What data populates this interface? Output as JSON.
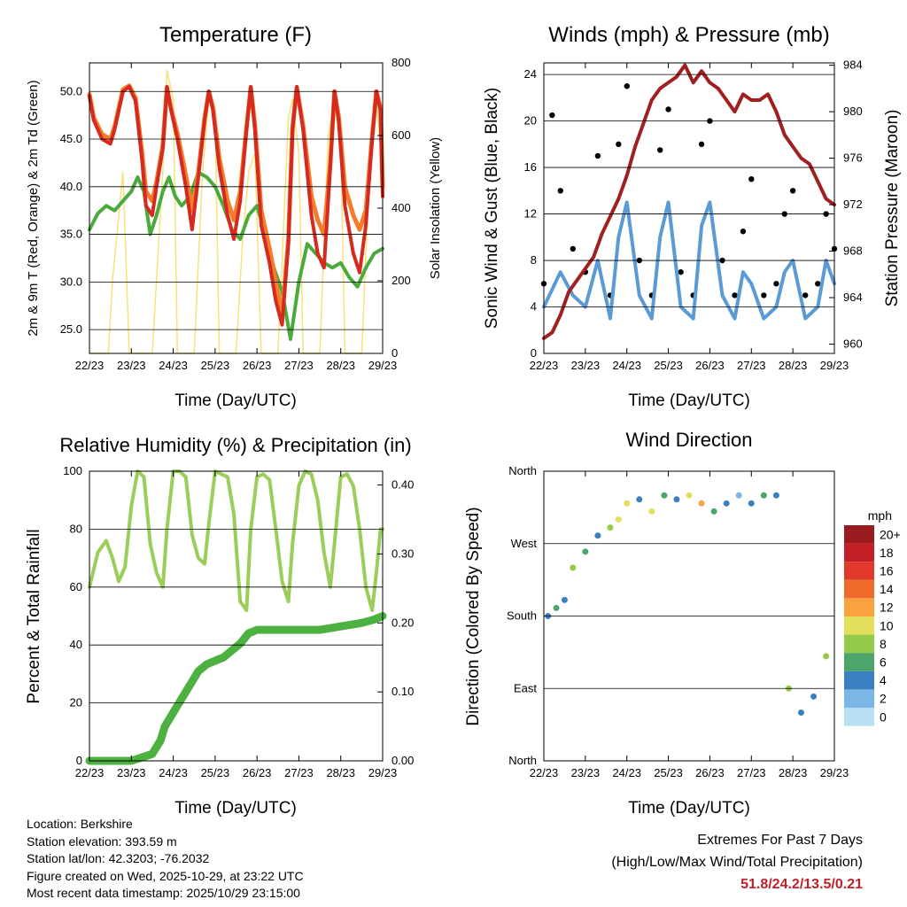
{
  "panels": {
    "temperature": {
      "title": "Temperature (F)",
      "ylabel_left": "2m & 9m T (Red, Orange) & 2m Td (Green)",
      "ylabel_right": "Solar Insolation (Yellow)",
      "xlabel": "Time (Day/UTC)"
    },
    "winds": {
      "title": "Winds (mph) & Pressure (mb)",
      "ylabel_left": "Sonic Wind & Gust (Blue, Black)",
      "ylabel_right": "Station Pressure (Maroon)",
      "xlabel": "Time (Day/UTC)"
    },
    "humidity": {
      "title": "Relative Humidity (%) & Precipitation (in)",
      "ylabel_left": "Percent & Total Rainfall",
      "xlabel": "Time (Day/UTC)"
    },
    "direction": {
      "title": "Wind Direction",
      "ylabel_left": "Direction (Colored By Speed)",
      "xlabel": "Time (Day/UTC)",
      "legend_title": "mph"
    }
  },
  "station": {
    "location": "Location: Berkshire",
    "elevation": "Station elevation: 393.59 m",
    "latlon": "Station lat/lon: 42.3203; -76.2032",
    "created": "Figure created on Wed, 2025-10-29, at 23:22 UTC",
    "recent": "Most recent data timestamp: 2025/10/29 23:15:00"
  },
  "extremes": {
    "line1": "Extremes For Past 7 Days",
    "line2": "(High/Low/Max Wind/Total Precipitation)",
    "values": "51.8/24.2/13.5/0.21"
  },
  "colors": {
    "temp2m": "#d42a20",
    "temp9m": "#f47c2a",
    "dewpoint": "#4aab3c",
    "solar": "#f7e27a",
    "wind": "#5b9bd5",
    "gust": "#000000",
    "pressure": "#a02020",
    "rh": "#9acd5a",
    "precip": "#4cb140"
  },
  "chart_data": [
    {
      "type": "line",
      "title": "Temperature (F)",
      "xlabel": "Time (Day/UTC)",
      "x_ticks": [
        "22/23",
        "23/23",
        "24/23",
        "25/23",
        "26/23",
        "27/23",
        "28/23",
        "29/23"
      ],
      "xlim": [
        0,
        7
      ],
      "ylabel": "2m & 9m T (Red, Orange) & 2m Td (Green)",
      "ylim": [
        22.5,
        53
      ],
      "y_ticks": [
        "25.0",
        "30.0",
        "35.0",
        "40.0",
        "45.0",
        "50.0"
      ],
      "y2label": "Solar Insolation (Yellow)",
      "y2lim": [
        0,
        800
      ],
      "y2_ticks": [
        "0",
        "200",
        "400",
        "600",
        "800"
      ],
      "series": [
        {
          "name": "2m T",
          "color": "#d42a20",
          "x": [
            0,
            0.1,
            0.3,
            0.5,
            0.6,
            0.8,
            0.95,
            1.1,
            1.25,
            1.35,
            1.5,
            1.6,
            1.75,
            1.85,
            1.95,
            2.1,
            2.3,
            2.45,
            2.6,
            2.75,
            2.85,
            2.95,
            3.1,
            3.3,
            3.45,
            3.6,
            3.75,
            3.85,
            3.95,
            4.1,
            4.3,
            4.45,
            4.6,
            4.75,
            4.85,
            4.95,
            5.1,
            5.3,
            5.45,
            5.6,
            5.75,
            5.85,
            5.95,
            6.1,
            6.3,
            6.45,
            6.6,
            6.75,
            6.85,
            6.95,
            7.0
          ],
          "y": [
            49.5,
            47,
            45,
            44.5,
            46,
            50,
            50.5,
            49,
            43,
            38,
            37,
            40,
            44,
            50.5,
            48,
            45,
            40,
            35.5,
            41,
            47,
            50,
            48,
            42,
            37,
            34.5,
            38.5,
            46,
            50.5,
            46,
            36,
            32,
            28,
            25.5,
            34,
            46,
            50.5,
            46,
            37,
            33,
            31.5,
            42,
            50,
            47,
            38,
            33,
            31,
            36,
            45,
            50,
            48,
            39
          ]
        },
        {
          "name": "9m T",
          "color": "#f47c2a",
          "x": [
            0,
            0.1,
            0.3,
            0.5,
            0.6,
            0.8,
            0.95,
            1.1,
            1.25,
            1.35,
            1.5,
            1.6,
            1.75,
            1.85,
            1.95,
            2.1,
            2.3,
            2.45,
            2.6,
            2.75,
            2.85,
            2.95,
            3.1,
            3.3,
            3.45,
            3.6,
            3.75,
            3.85,
            3.95,
            4.1,
            4.3,
            4.45,
            4.6,
            4.75,
            4.85,
            4.95,
            5.1,
            5.3,
            5.45,
            5.6,
            5.75,
            5.85,
            5.95,
            6.1,
            6.3,
            6.45,
            6.6,
            6.75,
            6.85,
            6.95,
            7.0
          ],
          "y": [
            49.7,
            47.3,
            45.5,
            45,
            46.3,
            50.2,
            50.6,
            49.3,
            43.8,
            39.5,
            38.5,
            40.5,
            44.3,
            50.4,
            48.2,
            45.6,
            41.2,
            37.5,
            41.5,
            47.2,
            50,
            48.3,
            43,
            38.5,
            36.5,
            39.5,
            46.2,
            50.4,
            46.5,
            37.5,
            33.5,
            30,
            26.5,
            34.5,
            46.2,
            50.4,
            46.4,
            39,
            36.5,
            35,
            42.5,
            50,
            47.4,
            40,
            37,
            35.5,
            37.5,
            45.3,
            50,
            48.3,
            40
          ]
        },
        {
          "name": "2m Td",
          "color": "#4aab3c",
          "x": [
            0,
            0.2,
            0.4,
            0.6,
            0.8,
            1.0,
            1.15,
            1.3,
            1.45,
            1.6,
            1.75,
            1.9,
            2.05,
            2.2,
            2.4,
            2.6,
            2.8,
            3.0,
            3.2,
            3.4,
            3.6,
            3.8,
            4.0,
            4.2,
            4.4,
            4.6,
            4.8,
            5.0,
            5.2,
            5.4,
            5.6,
            5.8,
            6.0,
            6.2,
            6.4,
            6.6,
            6.8,
            7.0
          ],
          "y": [
            35.5,
            37.2,
            38,
            37.5,
            38.5,
            39.5,
            41,
            39.5,
            35,
            37,
            39.5,
            41,
            39,
            38,
            39,
            41.5,
            41,
            40,
            38,
            35.5,
            34.5,
            37,
            38,
            35,
            31.5,
            29,
            24,
            30,
            34,
            33,
            32,
            31.5,
            32,
            30.5,
            29.5,
            31.5,
            33,
            33.5
          ]
        }
      ],
      "solar": {
        "name": "Solar Insolation",
        "color": "#f7e27a",
        "x": [
          0,
          0.2,
          0.45,
          0.55,
          0.8,
          0.95,
          1.1,
          1.2,
          1.5,
          1.75,
          1.85,
          2.0,
          2.1,
          2.5,
          2.7,
          2.85,
          3.0,
          3.1,
          3.5,
          3.65,
          3.8,
          3.95,
          4.1,
          4.5,
          4.75,
          4.85,
          5.0,
          5.1,
          5.5,
          5.7,
          5.85,
          6.0,
          6.1,
          6.5,
          6.7,
          6.85,
          7.0
        ],
        "y": [
          0,
          0,
          0,
          200,
          500,
          0,
          0,
          0,
          0,
          500,
          780,
          700,
          0,
          0,
          500,
          700,
          650,
          0,
          0,
          300,
          500,
          550,
          0,
          0,
          650,
          700,
          550,
          0,
          0,
          600,
          680,
          580,
          0,
          0,
          550,
          700,
          500
        ]
      }
    },
    {
      "type": "scatter",
      "title": "Winds (mph) & Pressure (mb)",
      "xlabel": "Time (Day/UTC)",
      "x_ticks": [
        "22/23",
        "23/23",
        "24/23",
        "25/23",
        "26/23",
        "27/23",
        "28/23",
        "29/23"
      ],
      "xlim": [
        0,
        7
      ],
      "ylabel": "Sonic Wind & Gust (Blue, Black)",
      "ylim": [
        0,
        25
      ],
      "y_ticks": [
        "0",
        "4",
        "8",
        "12",
        "16",
        "20",
        "24"
      ],
      "y2label": "Station Pressure (Maroon)",
      "y2lim": [
        959.2,
        984.2
      ],
      "y2_ticks": [
        "960",
        "964",
        "968",
        "972",
        "976",
        "980",
        "984"
      ],
      "series": [
        {
          "name": "Sonic Wind",
          "color": "#5b9bd5",
          "x": [
            0,
            0.4,
            0.7,
            1.0,
            1.3,
            1.6,
            1.8,
            2.0,
            2.3,
            2.6,
            2.8,
            3.0,
            3.3,
            3.6,
            3.8,
            4.0,
            4.3,
            4.6,
            4.8,
            5.0,
            5.3,
            5.6,
            5.8,
            6.0,
            6.3,
            6.6,
            6.8,
            7.0
          ],
          "y": [
            4,
            7,
            5,
            4,
            8,
            3,
            10,
            13,
            5,
            3,
            10,
            13,
            4,
            3,
            11,
            13,
            5,
            3,
            7,
            6,
            3,
            4,
            7,
            8,
            3,
            4,
            8,
            6
          ]
        },
        {
          "name": "Gust",
          "color": "#000000",
          "x": [
            0,
            0.2,
            0.4,
            0.7,
            1.0,
            1.3,
            1.6,
            1.8,
            2.0,
            2.3,
            2.6,
            2.8,
            3.0,
            3.3,
            3.6,
            3.8,
            4.0,
            4.3,
            4.6,
            4.8,
            5.0,
            5.3,
            5.6,
            5.8,
            6.0,
            6.3,
            6.6,
            6.8,
            7.0
          ],
          "y": [
            6,
            20.5,
            14,
            9,
            7,
            17,
            5,
            18,
            23,
            8,
            5,
            17.5,
            21,
            7,
            5,
            18,
            20,
            8,
            5,
            10.5,
            15,
            5,
            6,
            12,
            14,
            5,
            6,
            12,
            9
          ]
        },
        {
          "name": "Station Pressure",
          "color": "#a02020",
          "x": [
            0,
            0.2,
            0.4,
            0.6,
            0.8,
            1.0,
            1.2,
            1.4,
            1.6,
            1.8,
            2.0,
            2.2,
            2.4,
            2.6,
            2.8,
            3.0,
            3.2,
            3.4,
            3.6,
            3.8,
            4.0,
            4.2,
            4.4,
            4.6,
            4.8,
            5.0,
            5.2,
            5.4,
            5.6,
            5.8,
            6.0,
            6.2,
            6.4,
            6.6,
            6.8,
            7.0
          ],
          "y": [
            960.5,
            961,
            962.5,
            964.5,
            965.5,
            966.5,
            967.5,
            969.5,
            971,
            972.5,
            974.5,
            977,
            979,
            981,
            982,
            982.5,
            983,
            984,
            982.5,
            983.5,
            982.5,
            982,
            981,
            980,
            981.5,
            981,
            981,
            981.5,
            980,
            978,
            977,
            976,
            975.5,
            974,
            972.5,
            972
          ]
        }
      ]
    },
    {
      "type": "line",
      "title": "Relative Humidity (%) & Precipitation (in)",
      "xlabel": "Time (Day/UTC)",
      "x_ticks": [
        "22/23",
        "23/23",
        "24/23",
        "25/23",
        "26/23",
        "27/23",
        "28/23",
        "29/23"
      ],
      "xlim": [
        0,
        7
      ],
      "ylabel": "Percent & Total Rainfall",
      "ylim": [
        0,
        100
      ],
      "y_ticks": [
        "0",
        "20",
        "40",
        "60",
        "80",
        "100"
      ],
      "y2lim": [
        0,
        0.42
      ],
      "y2_ticks": [
        "0.00",
        "0.10",
        "0.20",
        "0.30",
        "0.40"
      ],
      "series": [
        {
          "name": "Relative Humidity",
          "color": "#9acd5a",
          "x": [
            0,
            0.2,
            0.4,
            0.55,
            0.7,
            0.85,
            1.0,
            1.15,
            1.3,
            1.45,
            1.6,
            1.75,
            1.85,
            2.0,
            2.15,
            2.3,
            2.45,
            2.6,
            2.75,
            2.85,
            3.0,
            3.15,
            3.3,
            3.45,
            3.6,
            3.75,
            3.85,
            4.0,
            4.15,
            4.3,
            4.45,
            4.6,
            4.75,
            4.85,
            5.0,
            5.15,
            5.3,
            5.45,
            5.6,
            5.75,
            5.85,
            6.0,
            6.15,
            6.3,
            6.45,
            6.6,
            6.75,
            6.85,
            6.95,
            7.0
          ],
          "y": [
            60,
            72,
            76,
            70,
            62,
            67,
            88,
            100,
            98,
            75,
            65,
            60,
            80,
            100,
            100,
            98,
            78,
            70,
            68,
            82,
            100,
            99,
            98,
            85,
            55,
            52,
            80,
            98,
            99,
            97,
            80,
            62,
            55,
            75,
            95,
            100,
            99,
            90,
            72,
            60,
            75,
            98,
            99,
            95,
            80,
            60,
            52,
            65,
            80,
            80
          ]
        },
        {
          "name": "Precipitation",
          "color": "#4cb140",
          "axis": "y2",
          "x": [
            0,
            0.5,
            1.0,
            1.5,
            1.7,
            1.8,
            2.0,
            2.2,
            2.4,
            2.6,
            2.8,
            3.0,
            3.2,
            3.4,
            3.6,
            3.8,
            4.0,
            4.5,
            5.0,
            5.5,
            6.0,
            6.5,
            6.8,
            7.0
          ],
          "y": [
            0.0,
            0.0,
            0.0,
            0.01,
            0.03,
            0.05,
            0.07,
            0.09,
            0.11,
            0.13,
            0.14,
            0.145,
            0.15,
            0.16,
            0.17,
            0.185,
            0.19,
            0.19,
            0.19,
            0.19,
            0.195,
            0.2,
            0.205,
            0.21
          ]
        }
      ]
    },
    {
      "type": "scatter",
      "title": "Wind Direction",
      "xlabel": "Time (Day/UTC)",
      "x_ticks": [
        "22/23",
        "23/23",
        "24/23",
        "25/23",
        "26/23",
        "27/23",
        "28/23",
        "29/23"
      ],
      "xlim": [
        0,
        7
      ],
      "ylabel": "Direction (Colored By Speed)",
      "ylim": [
        0,
        360
      ],
      "y_ticks": [
        "North",
        "East",
        "South",
        "West",
        "North"
      ],
      "legend": {
        "title": "mph",
        "labels": [
          "20+",
          "18",
          "16",
          "14",
          "12",
          "10",
          "8",
          "6",
          "4",
          "2",
          "0"
        ],
        "colors": [
          "#9a1b1e",
          "#c22026",
          "#e0392b",
          "#f06a2b",
          "#f9a340",
          "#e3df5a",
          "#95c94a",
          "#4ca66a",
          "#3a7fbf",
          "#7bb6e6",
          "#b9dff5"
        ]
      },
      "series": [
        {
          "name": "Direction",
          "x": [
            0.1,
            0.3,
            0.5,
            0.7,
            1.0,
            1.3,
            1.6,
            1.8,
            2.0,
            2.3,
            2.6,
            2.9,
            3.2,
            3.5,
            3.8,
            4.1,
            4.4,
            4.7,
            5.0,
            5.3,
            5.6,
            5.9,
            6.2,
            6.5,
            6.8
          ],
          "y": [
            180,
            190,
            200,
            240,
            260,
            280,
            290,
            300,
            320,
            325,
            310,
            330,
            325,
            330,
            320,
            310,
            320,
            330,
            320,
            330,
            330,
            90,
            60,
            80,
            130
          ],
          "speed": [
            4,
            6,
            4,
            8,
            5,
            3,
            7,
            9,
            10,
            4,
            10,
            6,
            3,
            10,
            12,
            5,
            4,
            2,
            4,
            6,
            4,
            8,
            3,
            4,
            8
          ]
        }
      ]
    }
  ]
}
